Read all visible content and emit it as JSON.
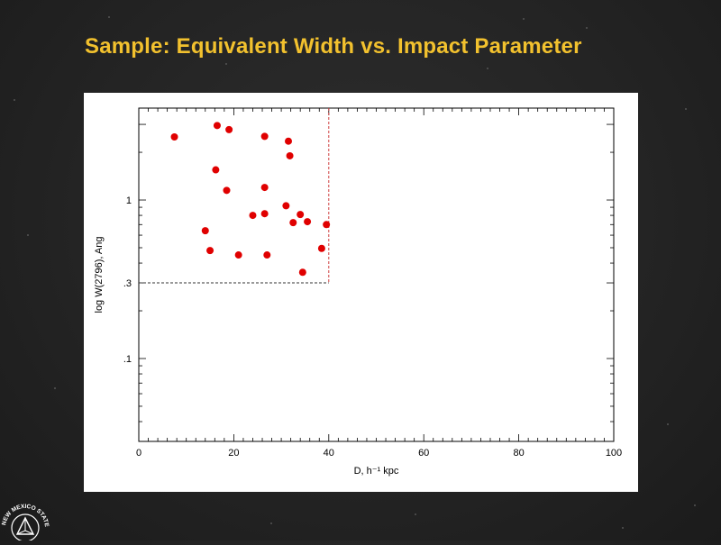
{
  "slide": {
    "title": "Sample: Equivalent Width vs. Impact Parameter"
  },
  "logo": {
    "text": "NEW MEXICO STATE UNIVERSITY",
    "icon": "nmsu-seal-icon"
  },
  "chart_data": {
    "type": "scatter",
    "title": "",
    "xlabel": "D, h⁻¹ kpc",
    "ylabel": "log W(2796), Ang",
    "xlim": [
      0,
      100
    ],
    "ylim": [
      0.03,
      3.8
    ],
    "yscale": "log",
    "x_ticks": [
      0,
      20,
      40,
      60,
      80,
      100
    ],
    "x_tick_labels": [
      "0",
      "20",
      "40",
      "60",
      "80",
      "100"
    ],
    "y_ticks": [
      1,
      0.3,
      0.1
    ],
    "y_tick_labels": [
      "1",
      ".3",
      ".1"
    ],
    "grid": false,
    "marker_color": "#e00000",
    "cut_lines": {
      "vertical_x": 40,
      "horizontal_y": 0.3,
      "vertical_color": "#d04040",
      "horizontal_color": "#333333"
    },
    "points": [
      {
        "x": 7.5,
        "y": 2.5
      },
      {
        "x": 16.5,
        "y": 2.95
      },
      {
        "x": 19.0,
        "y": 2.78
      },
      {
        "x": 26.5,
        "y": 2.52
      },
      {
        "x": 31.5,
        "y": 2.35
      },
      {
        "x": 31.8,
        "y": 1.9
      },
      {
        "x": 16.2,
        "y": 1.55
      },
      {
        "x": 18.5,
        "y": 1.15
      },
      {
        "x": 26.5,
        "y": 1.2
      },
      {
        "x": 31.0,
        "y": 0.92
      },
      {
        "x": 24.0,
        "y": 0.8
      },
      {
        "x": 26.5,
        "y": 0.82
      },
      {
        "x": 34.0,
        "y": 0.81
      },
      {
        "x": 32.5,
        "y": 0.72
      },
      {
        "x": 35.5,
        "y": 0.73
      },
      {
        "x": 39.5,
        "y": 0.7
      },
      {
        "x": 14.0,
        "y": 0.64
      },
      {
        "x": 15.0,
        "y": 0.48
      },
      {
        "x": 21.0,
        "y": 0.45
      },
      {
        "x": 27.0,
        "y": 0.45
      },
      {
        "x": 38.5,
        "y": 0.495
      },
      {
        "x": 34.5,
        "y": 0.35
      }
    ]
  }
}
